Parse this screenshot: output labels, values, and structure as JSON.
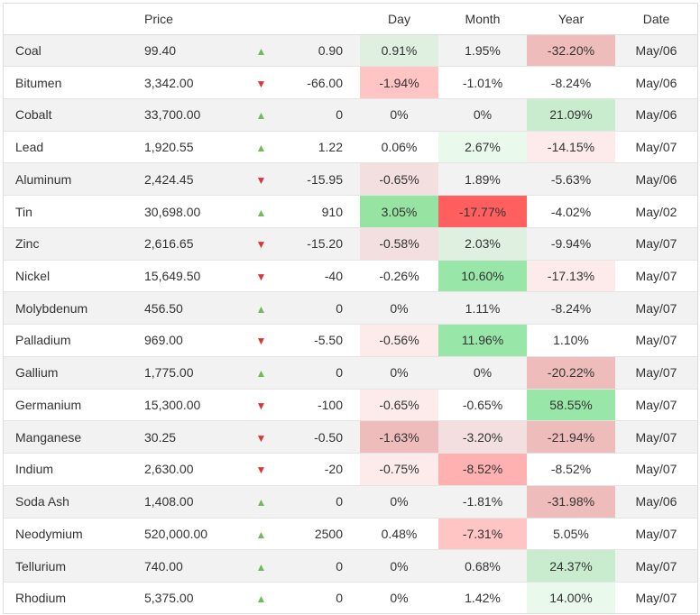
{
  "header": {
    "name": "",
    "price": "Price",
    "arrow": "",
    "change": "",
    "day": "Day",
    "month": "Month",
    "year": "Year",
    "date": "Date"
  },
  "colors": {
    "up_arrow": "#74b95e",
    "down_arrow": "#d9363a",
    "heat_scale": [
      "#ff5e5e",
      "#ffc3c3",
      "#f5e1e1",
      "#fdeaea",
      "#ffffff",
      "#eaf8ea",
      "#e0eee2",
      "#c9eccf",
      "#8fe8a6",
      "#99e8a8"
    ]
  },
  "rows": [
    {
      "name": "Coal",
      "price": "99.40",
      "direction": "up",
      "arrow_icon": "triangle-up-icon",
      "change": "0.90",
      "day": "0.91%",
      "day_bg": "#dff0e1",
      "month": "1.95%",
      "month_bg": "",
      "year": "-32.20%",
      "year_bg": "#efbcbc",
      "date": "May/06"
    },
    {
      "name": "Bitumen",
      "price": "3,342.00",
      "direction": "down",
      "arrow_icon": "triangle-down-icon",
      "change": "-66.00",
      "day": "-1.94%",
      "day_bg": "#ffc4c4",
      "month": "-1.01%",
      "month_bg": "",
      "year": "-8.24%",
      "year_bg": "",
      "date": "May/06"
    },
    {
      "name": "Cobalt",
      "price": "33,700.00",
      "direction": "up",
      "arrow_icon": "triangle-up-icon",
      "change": "0",
      "day": "0%",
      "day_bg": "",
      "month": "0%",
      "month_bg": "",
      "year": "21.09%",
      "year_bg": "#c9ecce",
      "date": "May/06"
    },
    {
      "name": "Lead",
      "price": "1,920.55",
      "direction": "up",
      "arrow_icon": "triangle-up-icon",
      "change": "1.22",
      "day": "0.06%",
      "day_bg": "",
      "month": "2.67%",
      "month_bg": "#e9f9eb",
      "year": "-14.15%",
      "year_bg": "#fdeaea",
      "date": "May/07"
    },
    {
      "name": "Aluminum",
      "price": "2,424.45",
      "direction": "down",
      "arrow_icon": "triangle-down-icon",
      "change": "-15.95",
      "day": "-0.65%",
      "day_bg": "#f3dfdf",
      "month": "1.89%",
      "month_bg": "",
      "year": "-5.63%",
      "year_bg": "",
      "date": "May/06"
    },
    {
      "name": "Tin",
      "price": "30,698.00",
      "direction": "up",
      "arrow_icon": "triangle-up-icon",
      "change": "910",
      "day": "3.05%",
      "day_bg": "#96e3a2",
      "month": "-17.77%",
      "month_bg": "#ff5f5f",
      "year": "-4.02%",
      "year_bg": "",
      "date": "May/02"
    },
    {
      "name": "Zinc",
      "price": "2,616.65",
      "direction": "down",
      "arrow_icon": "triangle-down-icon",
      "change": "-15.20",
      "day": "-0.58%",
      "day_bg": "#f3dfdf",
      "month": "2.03%",
      "month_bg": "#dff0e1",
      "year": "-9.94%",
      "year_bg": "",
      "date": "May/07"
    },
    {
      "name": "Nickel",
      "price": "15,649.50",
      "direction": "down",
      "arrow_icon": "triangle-down-icon",
      "change": "-40",
      "day": "-0.26%",
      "day_bg": "",
      "month": "10.60%",
      "month_bg": "#98e7a8",
      "year": "-17.13%",
      "year_bg": "#fdeaea",
      "date": "May/07"
    },
    {
      "name": "Molybdenum",
      "price": "456.50",
      "direction": "up",
      "arrow_icon": "triangle-up-icon",
      "change": "0",
      "day": "0%",
      "day_bg": "",
      "month": "1.11%",
      "month_bg": "",
      "year": "-8.24%",
      "year_bg": "",
      "date": "May/07"
    },
    {
      "name": "Palladium",
      "price": "969.00",
      "direction": "down",
      "arrow_icon": "triangle-down-icon",
      "change": "-5.50",
      "day": "-0.56%",
      "day_bg": "#fdeaea",
      "month": "11.96%",
      "month_bg": "#98e7a8",
      "year": "1.10%",
      "year_bg": "",
      "date": "May/07"
    },
    {
      "name": "Gallium",
      "price": "1,775.00",
      "direction": "up",
      "arrow_icon": "triangle-up-icon",
      "change": "0",
      "day": "0%",
      "day_bg": "",
      "month": "0%",
      "month_bg": "",
      "year": "-20.22%",
      "year_bg": "#efbcbc",
      "date": "May/07"
    },
    {
      "name": "Germanium",
      "price": "15,300.00",
      "direction": "down",
      "arrow_icon": "triangle-down-icon",
      "change": "-100",
      "day": "-0.65%",
      "day_bg": "#fdeaea",
      "month": "-0.65%",
      "month_bg": "",
      "year": "58.55%",
      "year_bg": "#98e7a8",
      "date": "May/07"
    },
    {
      "name": "Manganese",
      "price": "30.25",
      "direction": "down",
      "arrow_icon": "triangle-down-icon",
      "change": "-0.50",
      "day": "-1.63%",
      "day_bg": "#efbcbc",
      "month": "-3.20%",
      "month_bg": "#f3dfdf",
      "year": "-21.94%",
      "year_bg": "#efbcbc",
      "date": "May/07"
    },
    {
      "name": "Indium",
      "price": "2,630.00",
      "direction": "down",
      "arrow_icon": "triangle-down-icon",
      "change": "-20",
      "day": "-0.75%",
      "day_bg": "#fdeaea",
      "month": "-8.52%",
      "month_bg": "#ffb1b1",
      "year": "-8.52%",
      "year_bg": "",
      "date": "May/07"
    },
    {
      "name": "Soda Ash",
      "price": "1,408.00",
      "direction": "up",
      "arrow_icon": "triangle-up-icon",
      "change": "0",
      "day": "0%",
      "day_bg": "",
      "month": "-1.81%",
      "month_bg": "",
      "year": "-31.98%",
      "year_bg": "#efbcbc",
      "date": "May/06"
    },
    {
      "name": "Neodymium",
      "price": "520,000.00",
      "direction": "up",
      "arrow_icon": "triangle-up-icon",
      "change": "2500",
      "day": "0.48%",
      "day_bg": "",
      "month": "-7.31%",
      "month_bg": "#ffc4c4",
      "year": "5.05%",
      "year_bg": "",
      "date": "May/07"
    },
    {
      "name": "Tellurium",
      "price": "740.00",
      "direction": "up",
      "arrow_icon": "triangle-up-icon",
      "change": "0",
      "day": "0%",
      "day_bg": "",
      "month": "0.68%",
      "month_bg": "",
      "year": "24.37%",
      "year_bg": "#c9ecce",
      "date": "May/07"
    },
    {
      "name": "Rhodium",
      "price": "5,375.00",
      "direction": "up",
      "arrow_icon": "triangle-up-icon",
      "change": "0",
      "day": "0%",
      "day_bg": "",
      "month": "1.42%",
      "month_bg": "",
      "year": "14.00%",
      "year_bg": "#e9f9eb",
      "date": "May/07"
    }
  ]
}
